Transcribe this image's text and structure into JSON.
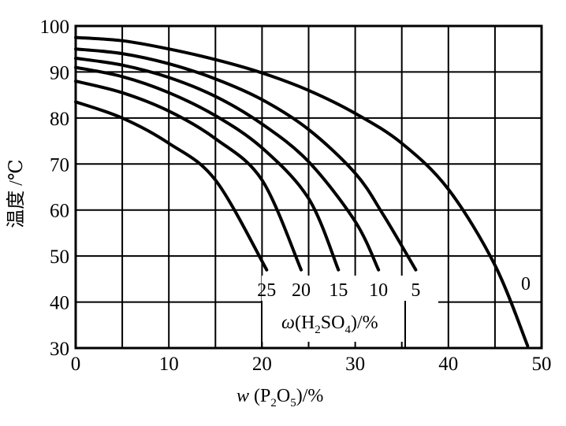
{
  "chart_data": {
    "type": "line",
    "xlabel": {
      "italic": "w",
      "p1": " (P",
      "s1": "2",
      "p2": "O",
      "s2": "5",
      "p3": ")/%"
    },
    "ylabel": "温度 /℃",
    "xlim": [
      0,
      50
    ],
    "ylim": [
      30,
      100
    ],
    "xticks": [
      0,
      10,
      20,
      30,
      40,
      50
    ],
    "yticks": [
      30,
      40,
      50,
      60,
      70,
      80,
      90,
      100
    ],
    "grid": true,
    "grid_step_x": 5,
    "grid_step_y": 10,
    "legend_title": {
      "italic": "ω",
      "p1": "(H",
      "s1": "2",
      "p2": "SO",
      "s2": "4",
      "p3": ")/%"
    },
    "series": [
      {
        "name": "0",
        "x": [
          0,
          5,
          10,
          15,
          20,
          25,
          30,
          35,
          40,
          45,
          48.5
        ],
        "y": [
          97.5,
          96.8,
          95.0,
          92.7,
          89.8,
          86.0,
          81.0,
          74.5,
          64.5,
          48.0,
          30.5
        ]
      },
      {
        "name": "5",
        "x": [
          0,
          5,
          10,
          15,
          20,
          25,
          30,
          33,
          36.5
        ],
        "y": [
          95.0,
          94.0,
          91.8,
          88.5,
          84.0,
          77.5,
          68.0,
          59.0,
          47.0
        ]
      },
      {
        "name": "10",
        "x": [
          0,
          5,
          10,
          15,
          20,
          25,
          30,
          32.5
        ],
        "y": [
          93.0,
          91.5,
          88.8,
          84.7,
          78.7,
          70.5,
          57.5,
          47.0
        ]
      },
      {
        "name": "15",
        "x": [
          0,
          5,
          10,
          15,
          20,
          25,
          28.2
        ],
        "y": [
          91.0,
          89.0,
          85.5,
          80.5,
          73.5,
          62.5,
          47.0
        ]
      },
      {
        "name": "20",
        "x": [
          0,
          5,
          10,
          15,
          20,
          24.2
        ],
        "y": [
          88.0,
          85.5,
          81.5,
          75.5,
          66.5,
          47.0
        ]
      },
      {
        "name": "25",
        "x": [
          0,
          5,
          10,
          15,
          20.5
        ],
        "y": [
          83.5,
          80.0,
          74.5,
          66.5,
          47.0
        ]
      }
    ]
  }
}
